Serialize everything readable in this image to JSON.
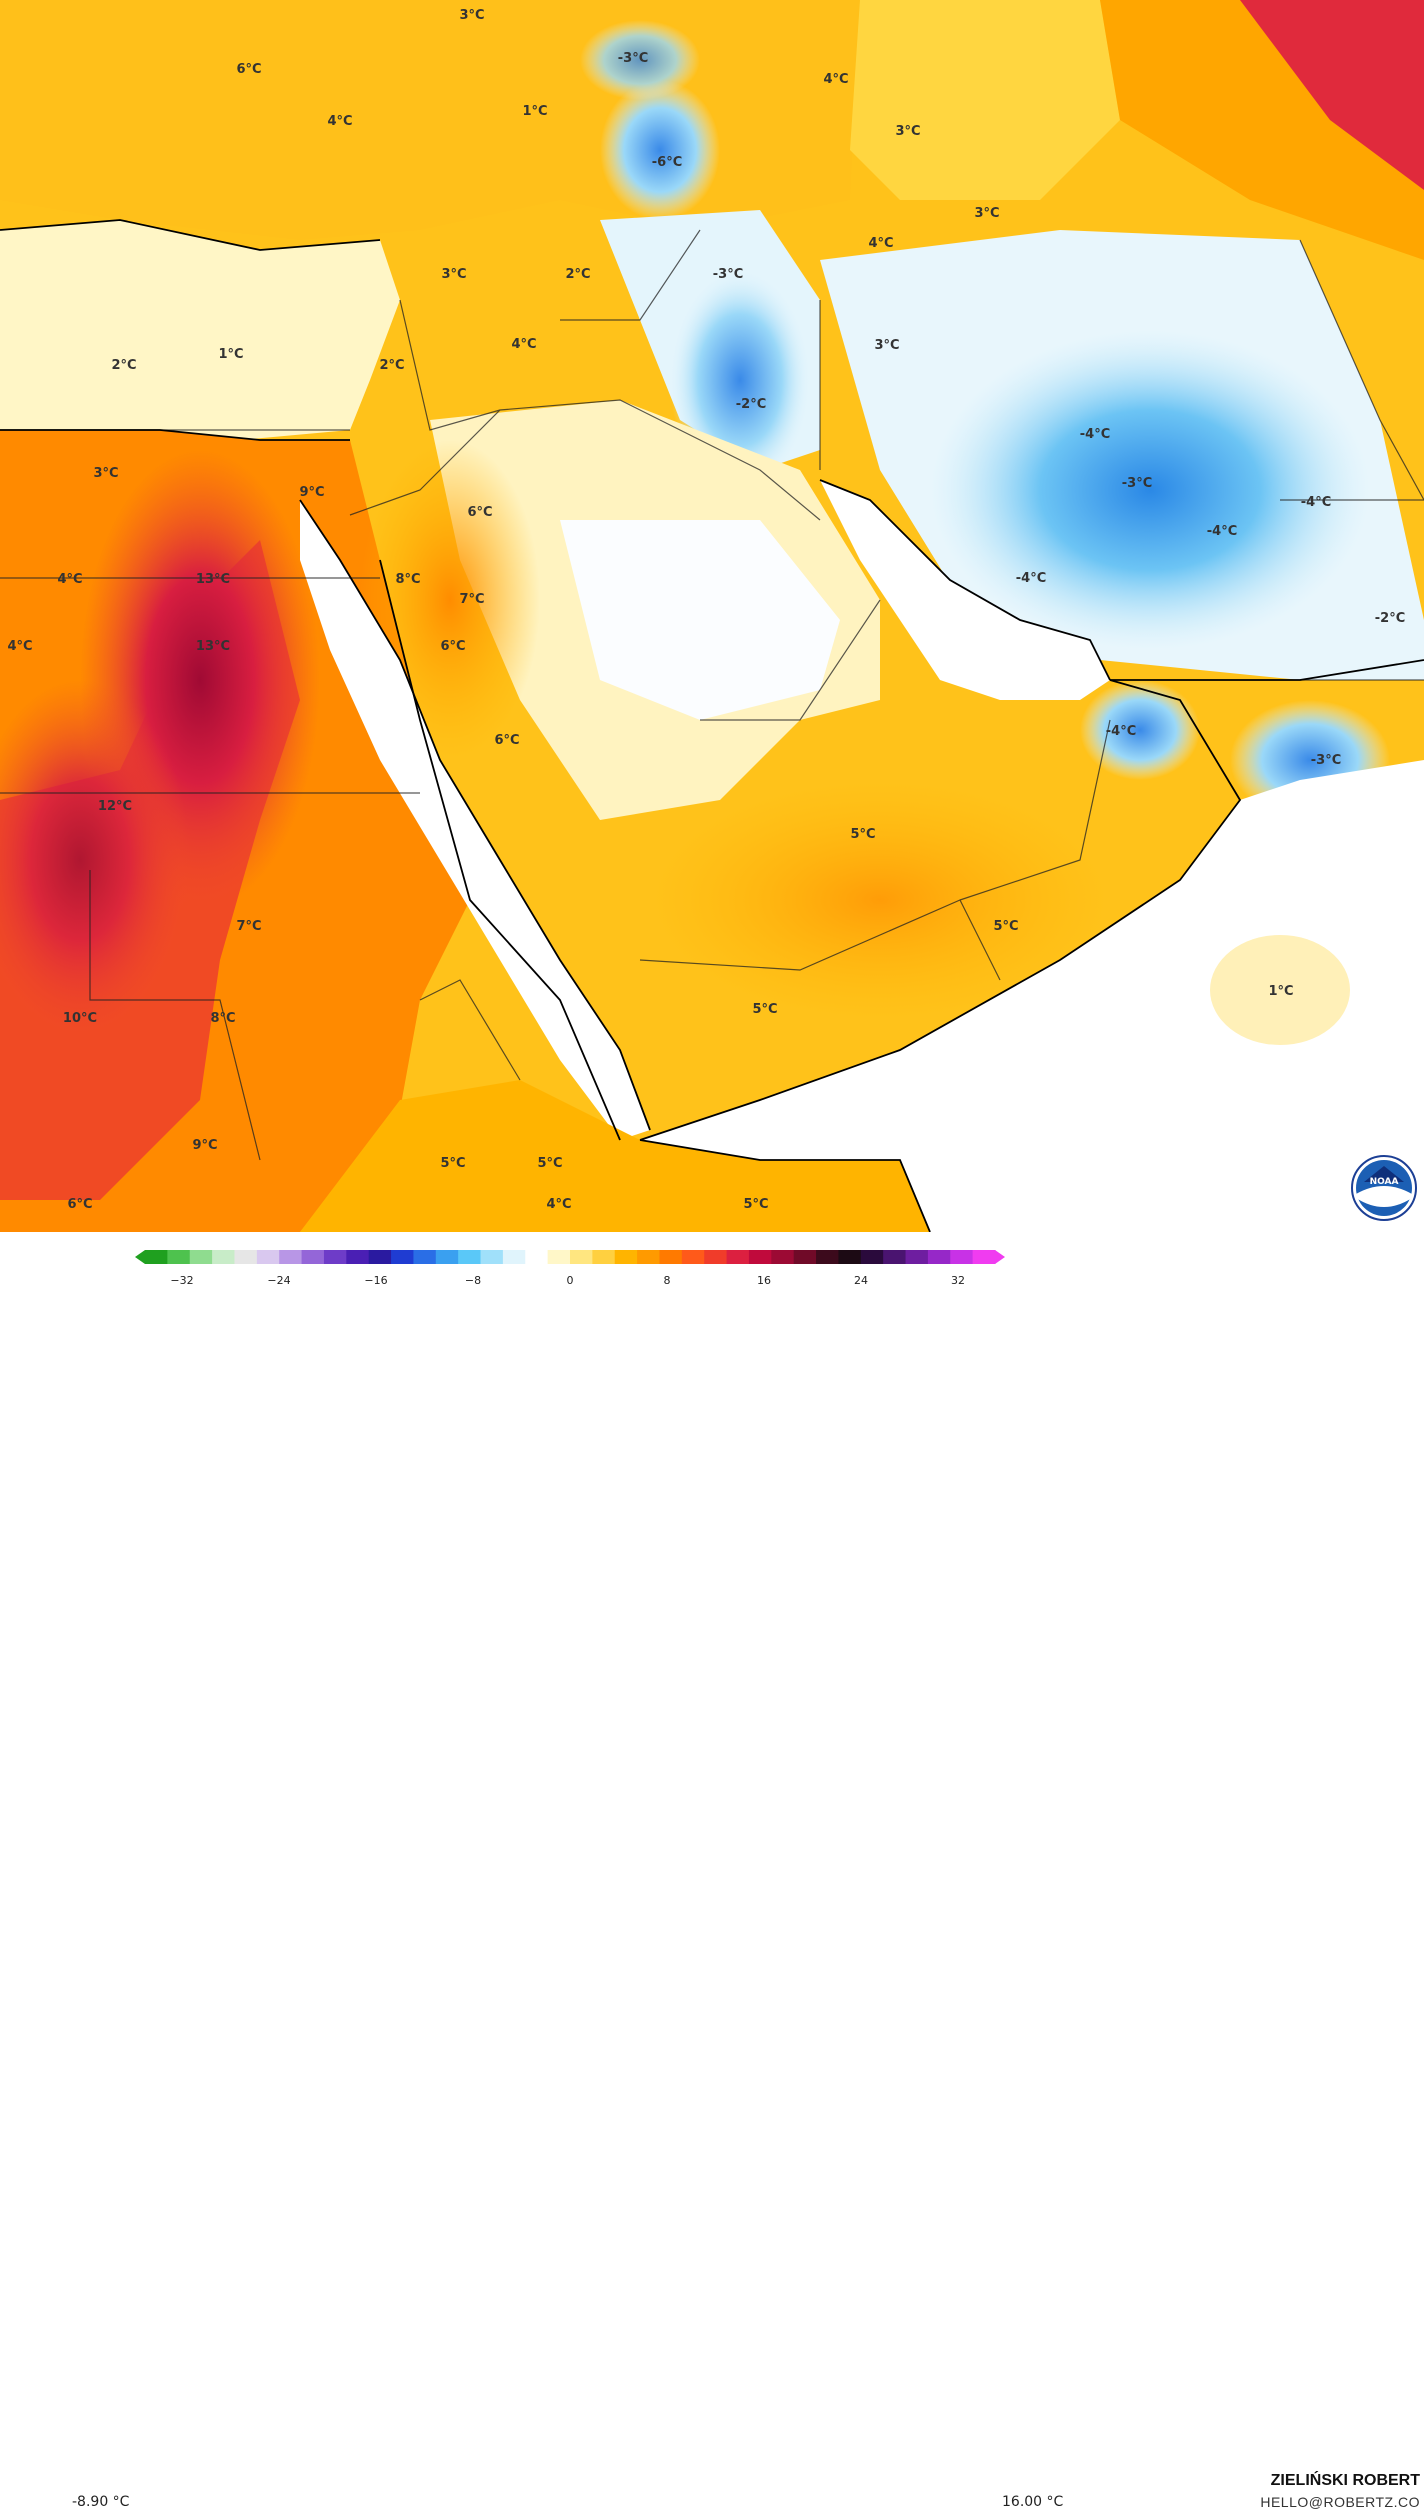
{
  "legend": {
    "min_label": "-8.90 °C",
    "max_label": "16.00 °C",
    "ticks": [
      "−32",
      "−24",
      "−16",
      "−8",
      "0",
      "8",
      "16",
      "24",
      "32"
    ],
    "colors": [
      "#1fa01f",
      "#4ec24e",
      "#8fdc8f",
      "#c8ecc8",
      "#e6e6e6",
      "#d9c8ef",
      "#b896e6",
      "#9466d8",
      "#6e3cc8",
      "#4a1fb4",
      "#2a1aa0",
      "#1f3cd2",
      "#2a6ee6",
      "#3aa0f0",
      "#5ac8f8",
      "#a0e0fa",
      "#e0f4fc",
      "#ffffff",
      "#fff7c8",
      "#ffe680",
      "#ffd040",
      "#ffb400",
      "#ff9a00",
      "#ff7a00",
      "#ff5a1a",
      "#f03c2a",
      "#dc2040",
      "#c00a3c",
      "#9c0a34",
      "#700a28",
      "#3c0a1c",
      "#1c0a14",
      "#2a0a3c",
      "#4a1470",
      "#6e1ea0",
      "#9628c8",
      "#c832e6",
      "#f03cf0"
    ]
  },
  "author": "ZIELIŃSKI ROBERT",
  "email": "HELLO@ROBERTZ.CO",
  "logo": {
    "text": "NOAA",
    "icon": "noaa-logo"
  },
  "map_labels": [
    {
      "text": "3°C"
    },
    {
      "text": "6°C"
    },
    {
      "text": "-3°C"
    },
    {
      "text": "4°C"
    },
    {
      "text": "1°C"
    },
    {
      "text": "4°C"
    },
    {
      "text": "-6°C"
    },
    {
      "text": "3°C"
    },
    {
      "text": "3°C"
    },
    {
      "text": "4°C"
    },
    {
      "text": "3°C"
    },
    {
      "text": "2°C"
    },
    {
      "text": "-3°C"
    },
    {
      "text": "4°C"
    },
    {
      "text": "2°C"
    },
    {
      "text": "1°C"
    },
    {
      "text": "2°C"
    },
    {
      "text": "3°C"
    },
    {
      "text": "-2°C"
    },
    {
      "text": "-4°C"
    },
    {
      "text": "-3°C"
    },
    {
      "text": "3°C"
    },
    {
      "text": "9°C"
    },
    {
      "text": "6°C"
    },
    {
      "text": "-4°C"
    },
    {
      "text": "-4°C"
    },
    {
      "text": "4°C"
    },
    {
      "text": "13°C"
    },
    {
      "text": "8°C"
    },
    {
      "text": "7°C"
    },
    {
      "text": "-4°C"
    },
    {
      "text": "4°C"
    },
    {
      "text": "13°C"
    },
    {
      "text": "6°C"
    },
    {
      "text": "-2°C"
    },
    {
      "text": "6°C"
    },
    {
      "text": "-4°C"
    },
    {
      "text": "-3°C"
    },
    {
      "text": "12°C"
    },
    {
      "text": "5°C"
    },
    {
      "text": "7°C"
    },
    {
      "text": "5°C"
    },
    {
      "text": "1°C"
    },
    {
      "text": "10°C"
    },
    {
      "text": "8°C"
    },
    {
      "text": "5°C"
    },
    {
      "text": "9°C"
    },
    {
      "text": "5°C"
    },
    {
      "text": "5°C"
    },
    {
      "text": "4°C"
    },
    {
      "text": "6°C"
    },
    {
      "text": "5°C"
    }
  ]
}
